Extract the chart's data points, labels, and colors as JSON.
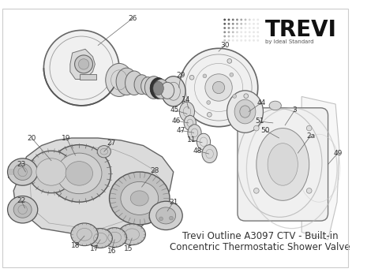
{
  "title_line1": "Trevi Outline A3097 CTV - Built-in",
  "title_line2": "Concentric Thermostatic Shower Valve",
  "brand_name": "TREVI",
  "brand_sub": "by Ideal Standard",
  "bg": "#ffffff",
  "gray_light": "#e8e8e8",
  "gray_mid": "#cccccc",
  "gray_dark": "#888888",
  "line_color": "#555555",
  "text_color": "#333333",
  "label_fs": 6.5,
  "title_fs": 8.5,
  "brand_fs": 20
}
